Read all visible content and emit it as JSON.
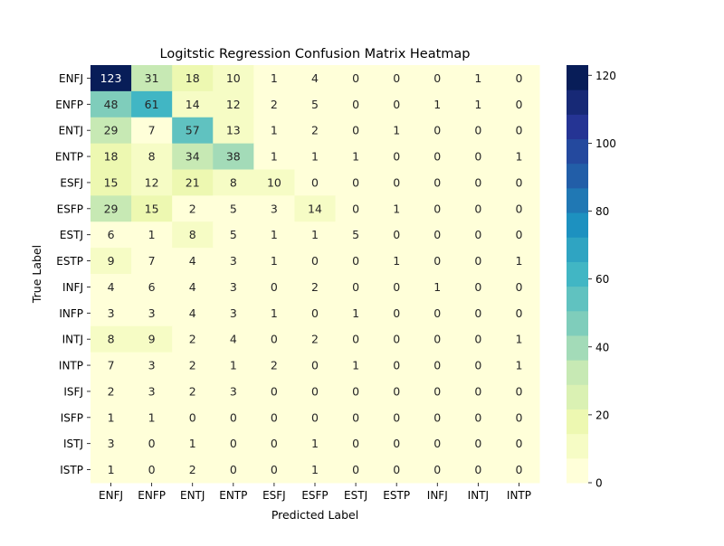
{
  "chart_data": {
    "type": "heatmap",
    "title": "Logitstic Regression Confusion Matrix Heatmap",
    "xlabel": "Predicted Label",
    "ylabel": "True Label",
    "x_categories": [
      "ENFJ",
      "ENFP",
      "ENTJ",
      "ENTP",
      "ESFJ",
      "ESFP",
      "ESTJ",
      "ESTP",
      "INFJ",
      "INTJ",
      "INTP"
    ],
    "y_categories": [
      "ENFJ",
      "ENFP",
      "ENTJ",
      "ENTP",
      "ESFJ",
      "ESFP",
      "ESTJ",
      "ESTP",
      "INFJ",
      "INFP",
      "INTJ",
      "INTP",
      "ISFJ",
      "ISFP",
      "ISTJ",
      "ISTP"
    ],
    "values": [
      [
        123,
        31,
        18,
        10,
        1,
        4,
        0,
        0,
        0,
        1,
        0
      ],
      [
        48,
        61,
        14,
        12,
        2,
        5,
        0,
        0,
        1,
        1,
        0
      ],
      [
        29,
        7,
        57,
        13,
        1,
        2,
        0,
        1,
        0,
        0,
        0
      ],
      [
        18,
        8,
        34,
        38,
        1,
        1,
        1,
        0,
        0,
        0,
        1
      ],
      [
        15,
        12,
        21,
        8,
        10,
        0,
        0,
        0,
        0,
        0,
        0
      ],
      [
        29,
        15,
        2,
        5,
        3,
        14,
        0,
        1,
        0,
        0,
        0
      ],
      [
        6,
        1,
        8,
        5,
        1,
        1,
        5,
        0,
        0,
        0,
        0
      ],
      [
        9,
        7,
        4,
        3,
        1,
        0,
        0,
        1,
        0,
        0,
        1
      ],
      [
        4,
        6,
        4,
        3,
        0,
        2,
        0,
        0,
        1,
        0,
        0
      ],
      [
        3,
        3,
        4,
        3,
        1,
        0,
        1,
        0,
        0,
        0,
        0
      ],
      [
        8,
        9,
        2,
        4,
        0,
        2,
        0,
        0,
        0,
        0,
        1
      ],
      [
        7,
        3,
        2,
        1,
        2,
        0,
        1,
        0,
        0,
        0,
        1
      ],
      [
        2,
        3,
        2,
        3,
        0,
        0,
        0,
        0,
        0,
        0,
        0
      ],
      [
        1,
        1,
        0,
        0,
        0,
        0,
        0,
        0,
        0,
        0,
        0
      ],
      [
        3,
        0,
        1,
        0,
        0,
        1,
        0,
        0,
        0,
        0,
        0
      ],
      [
        1,
        0,
        2,
        0,
        0,
        1,
        0,
        0,
        0,
        0,
        0
      ]
    ],
    "colorbar": {
      "vmin": 0,
      "vmax": 123,
      "ticks": [
        0,
        20,
        40,
        60,
        80,
        100,
        120
      ],
      "colormap": "YlGnBu",
      "levels": 17
    },
    "annotations": true
  }
}
